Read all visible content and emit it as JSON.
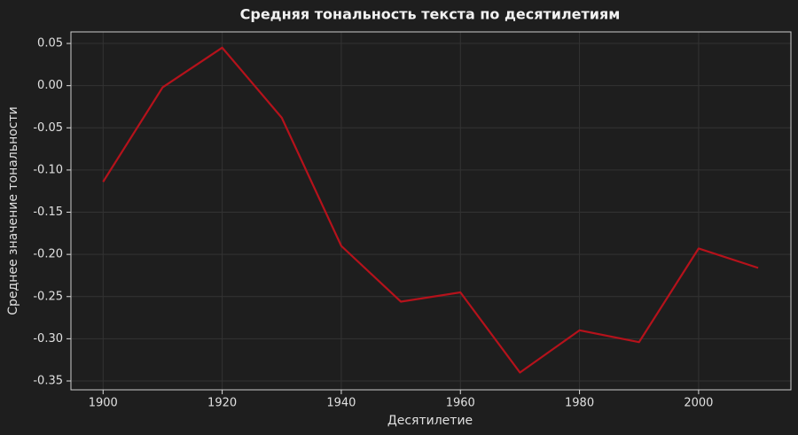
{
  "chart_data": {
    "type": "line",
    "title": "Средняя тональность текста по десятилетиям",
    "x_label": "Десятилетие",
    "y_label": "Среднее значение тональности",
    "x": [
      1900,
      1910,
      1920,
      1930,
      1940,
      1950,
      1960,
      1970,
      1980,
      1990,
      2000,
      2010
    ],
    "series": [
      {
        "name": "Средняя тональность",
        "color": "#b5121b",
        "values": [
          -0.114,
          -0.002,
          0.045,
          -0.038,
          -0.19,
          -0.256,
          -0.245,
          -0.34,
          -0.29,
          -0.304,
          -0.193,
          -0.216
        ]
      }
    ],
    "xlim": [
      1894.6,
      2015.5
    ],
    "ylim": [
      -0.3605,
      0.0637
    ],
    "xticks": [
      1900,
      1920,
      1940,
      1960,
      1980,
      2000
    ],
    "yticks": [
      -0.35,
      {
        "value": -0.3,
        "label": "-0.30"
      },
      -0.25,
      {
        "value": -0.2,
        "label": "-0.20"
      },
      -0.15,
      {
        "value": -0.1,
        "label": "-0.10"
      },
      -0.05,
      {
        "value": 0,
        "label": "0.00"
      },
      0.05
    ],
    "grid": true
  }
}
